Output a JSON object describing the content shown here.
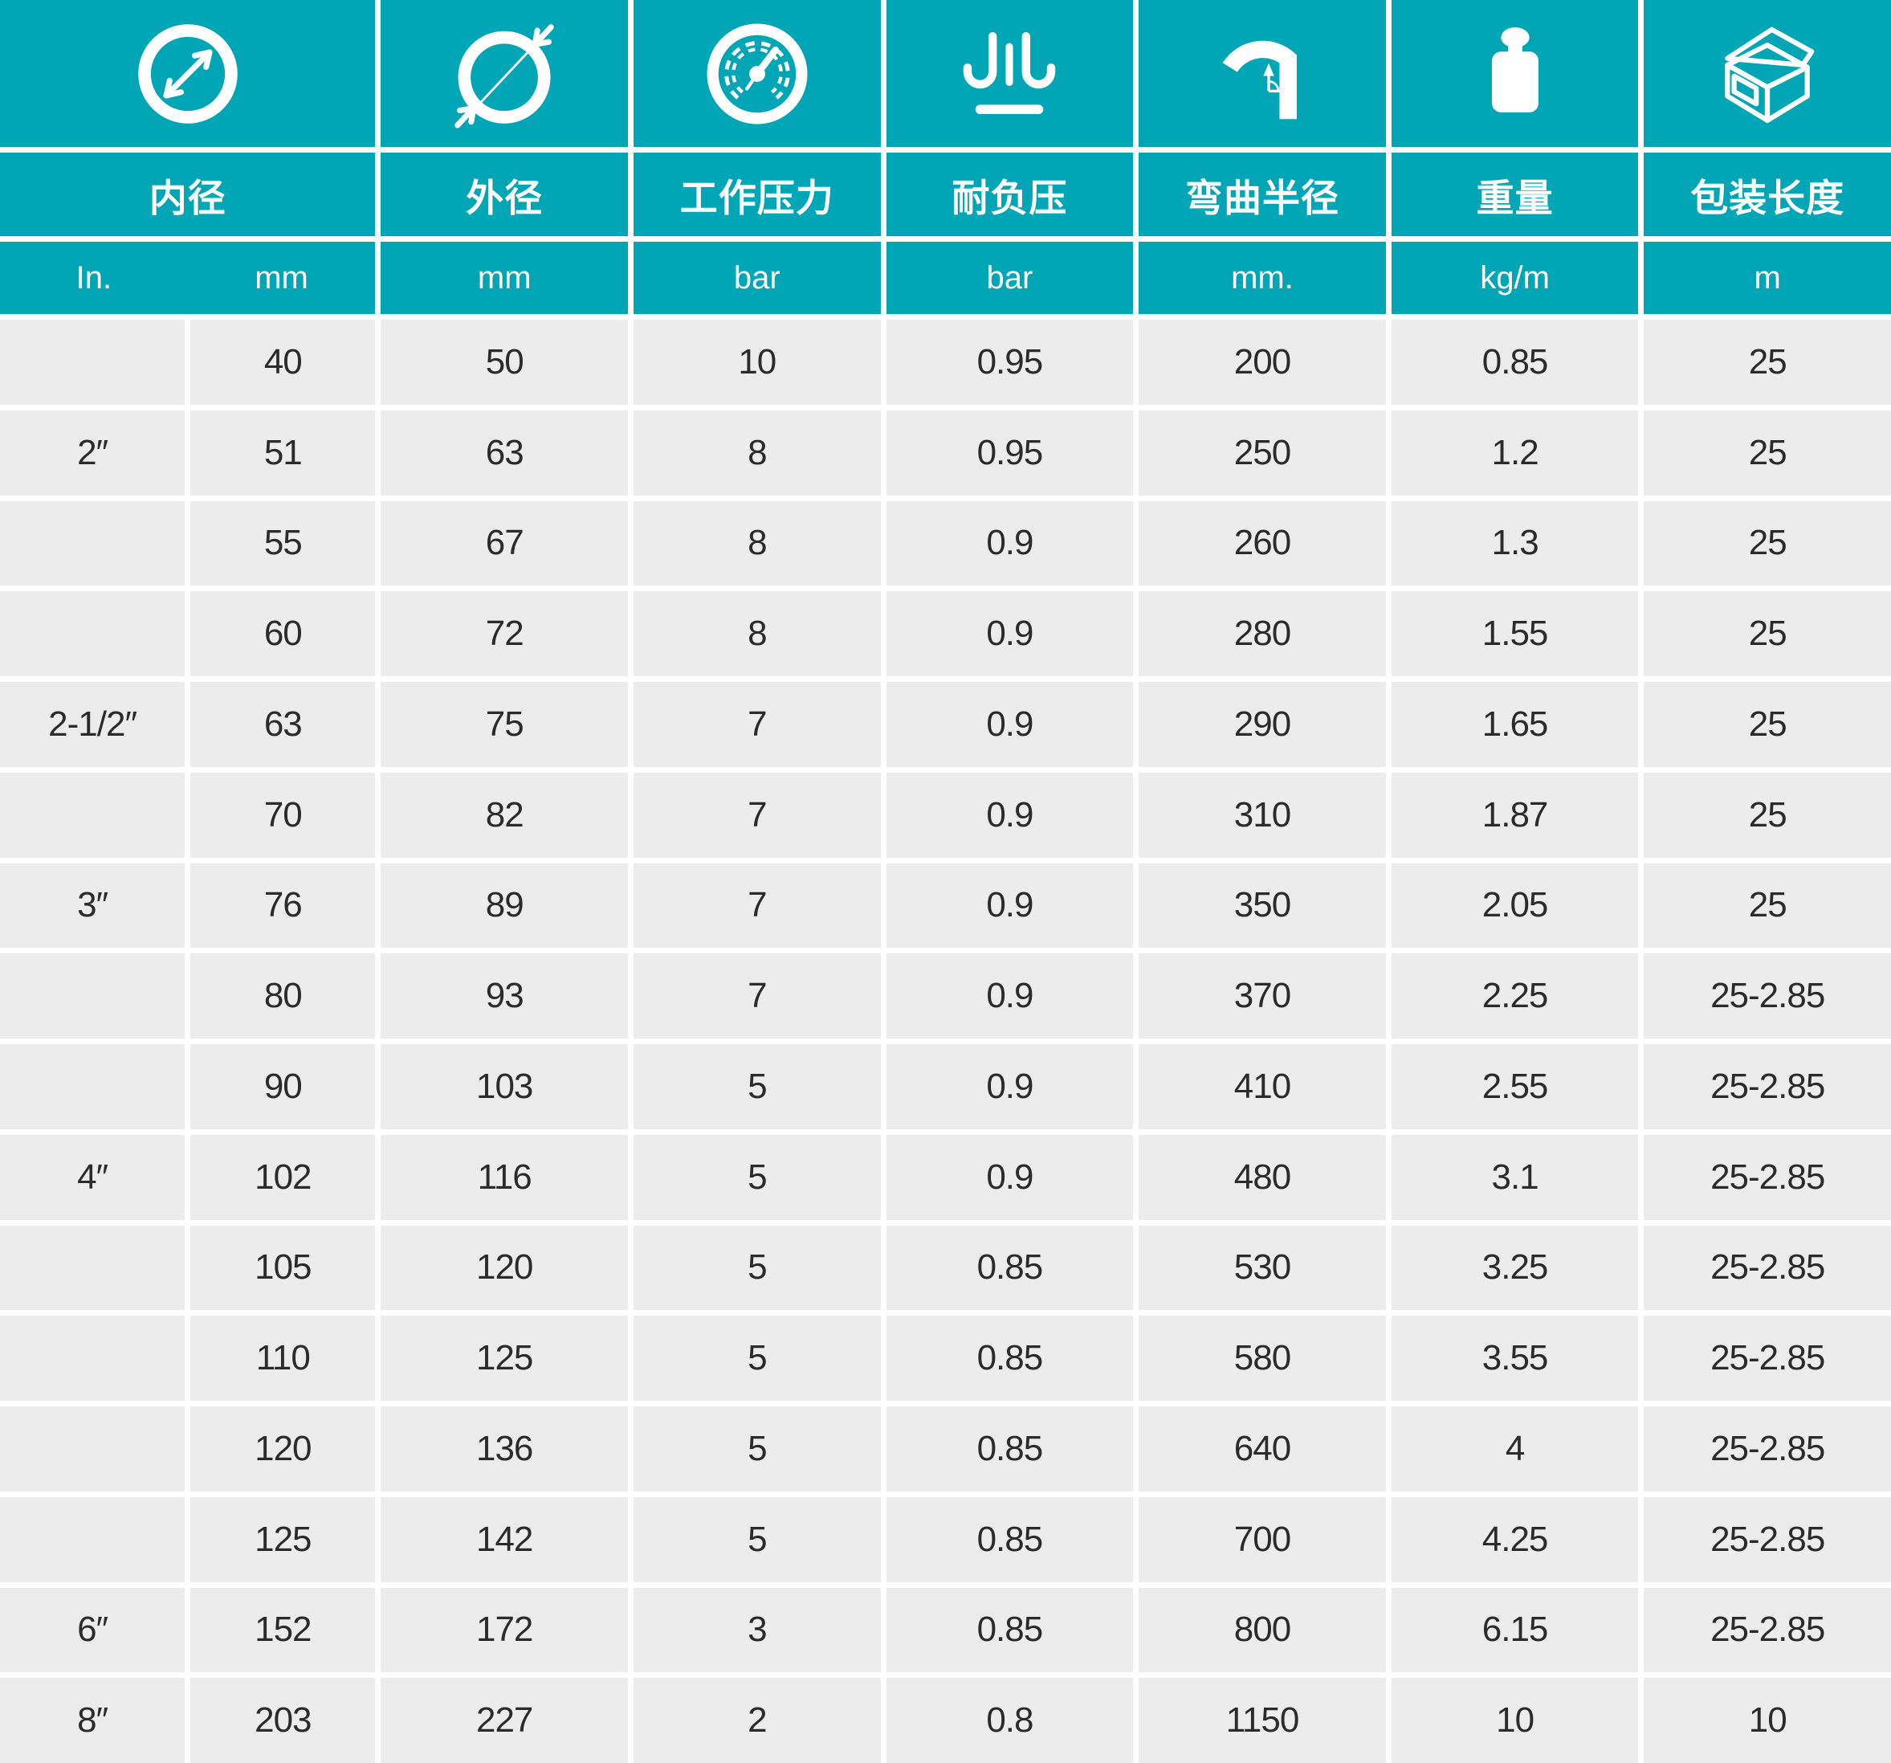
{
  "theme": {
    "header_teal": "#00a6b6",
    "cell_gray": "#ececec",
    "text_dark": "#2b2b2b",
    "gap_white": "#ffffff"
  },
  "columns": [
    {
      "label": "内径",
      "icon": "inner-diameter-icon",
      "units": [
        "In.",
        "mm"
      ]
    },
    {
      "label": "外径",
      "icon": "outer-diameter-icon",
      "unit": "mm"
    },
    {
      "label": "工作压力",
      "icon": "pressure-gauge-icon",
      "unit": "bar"
    },
    {
      "label": "耐负压",
      "icon": "vacuum-icon",
      "unit": "bar"
    },
    {
      "label": "弯曲半径",
      "icon": "bend-radius-icon",
      "unit": "mm."
    },
    {
      "label": "重量",
      "icon": "weight-icon",
      "unit": "kg/m"
    },
    {
      "label": "包装长度",
      "icon": "package-icon",
      "unit": "m"
    }
  ],
  "rows": [
    [
      "",
      "40",
      "50",
      "10",
      "0.95",
      "200",
      "0.85",
      "25"
    ],
    [
      "2″",
      "51",
      "63",
      "8",
      "0.95",
      "250",
      "1.2",
      "25"
    ],
    [
      "",
      "55",
      "67",
      "8",
      "0.9",
      "260",
      "1.3",
      "25"
    ],
    [
      "",
      "60",
      "72",
      "8",
      "0.9",
      "280",
      "1.55",
      "25"
    ],
    [
      "2-1/2″",
      "63",
      "75",
      "7",
      "0.9",
      "290",
      "1.65",
      "25"
    ],
    [
      "",
      "70",
      "82",
      "7",
      "0.9",
      "310",
      "1.87",
      "25"
    ],
    [
      "3″",
      "76",
      "89",
      "7",
      "0.9",
      "350",
      "2.05",
      "25"
    ],
    [
      "",
      "80",
      "93",
      "7",
      "0.9",
      "370",
      "2.25",
      "25-2.85"
    ],
    [
      "",
      "90",
      "103",
      "5",
      "0.9",
      "410",
      "2.55",
      "25-2.85"
    ],
    [
      "4″",
      "102",
      "116",
      "5",
      "0.9",
      "480",
      "3.1",
      "25-2.85"
    ],
    [
      "",
      "105",
      "120",
      "5",
      "0.85",
      "530",
      "3.25",
      "25-2.85"
    ],
    [
      "",
      "110",
      "125",
      "5",
      "0.85",
      "580",
      "3.55",
      "25-2.85"
    ],
    [
      "",
      "120",
      "136",
      "5",
      "0.85",
      "640",
      "4",
      "25-2.85"
    ],
    [
      "",
      "125",
      "142",
      "5",
      "0.85",
      "700",
      "4.25",
      "25-2.85"
    ],
    [
      "6″",
      "152",
      "172",
      "3",
      "0.85",
      "800",
      "6.15",
      "25-2.85"
    ],
    [
      "8″",
      "203",
      "227",
      "2",
      "0.8",
      "1150",
      "10",
      "10"
    ]
  ]
}
